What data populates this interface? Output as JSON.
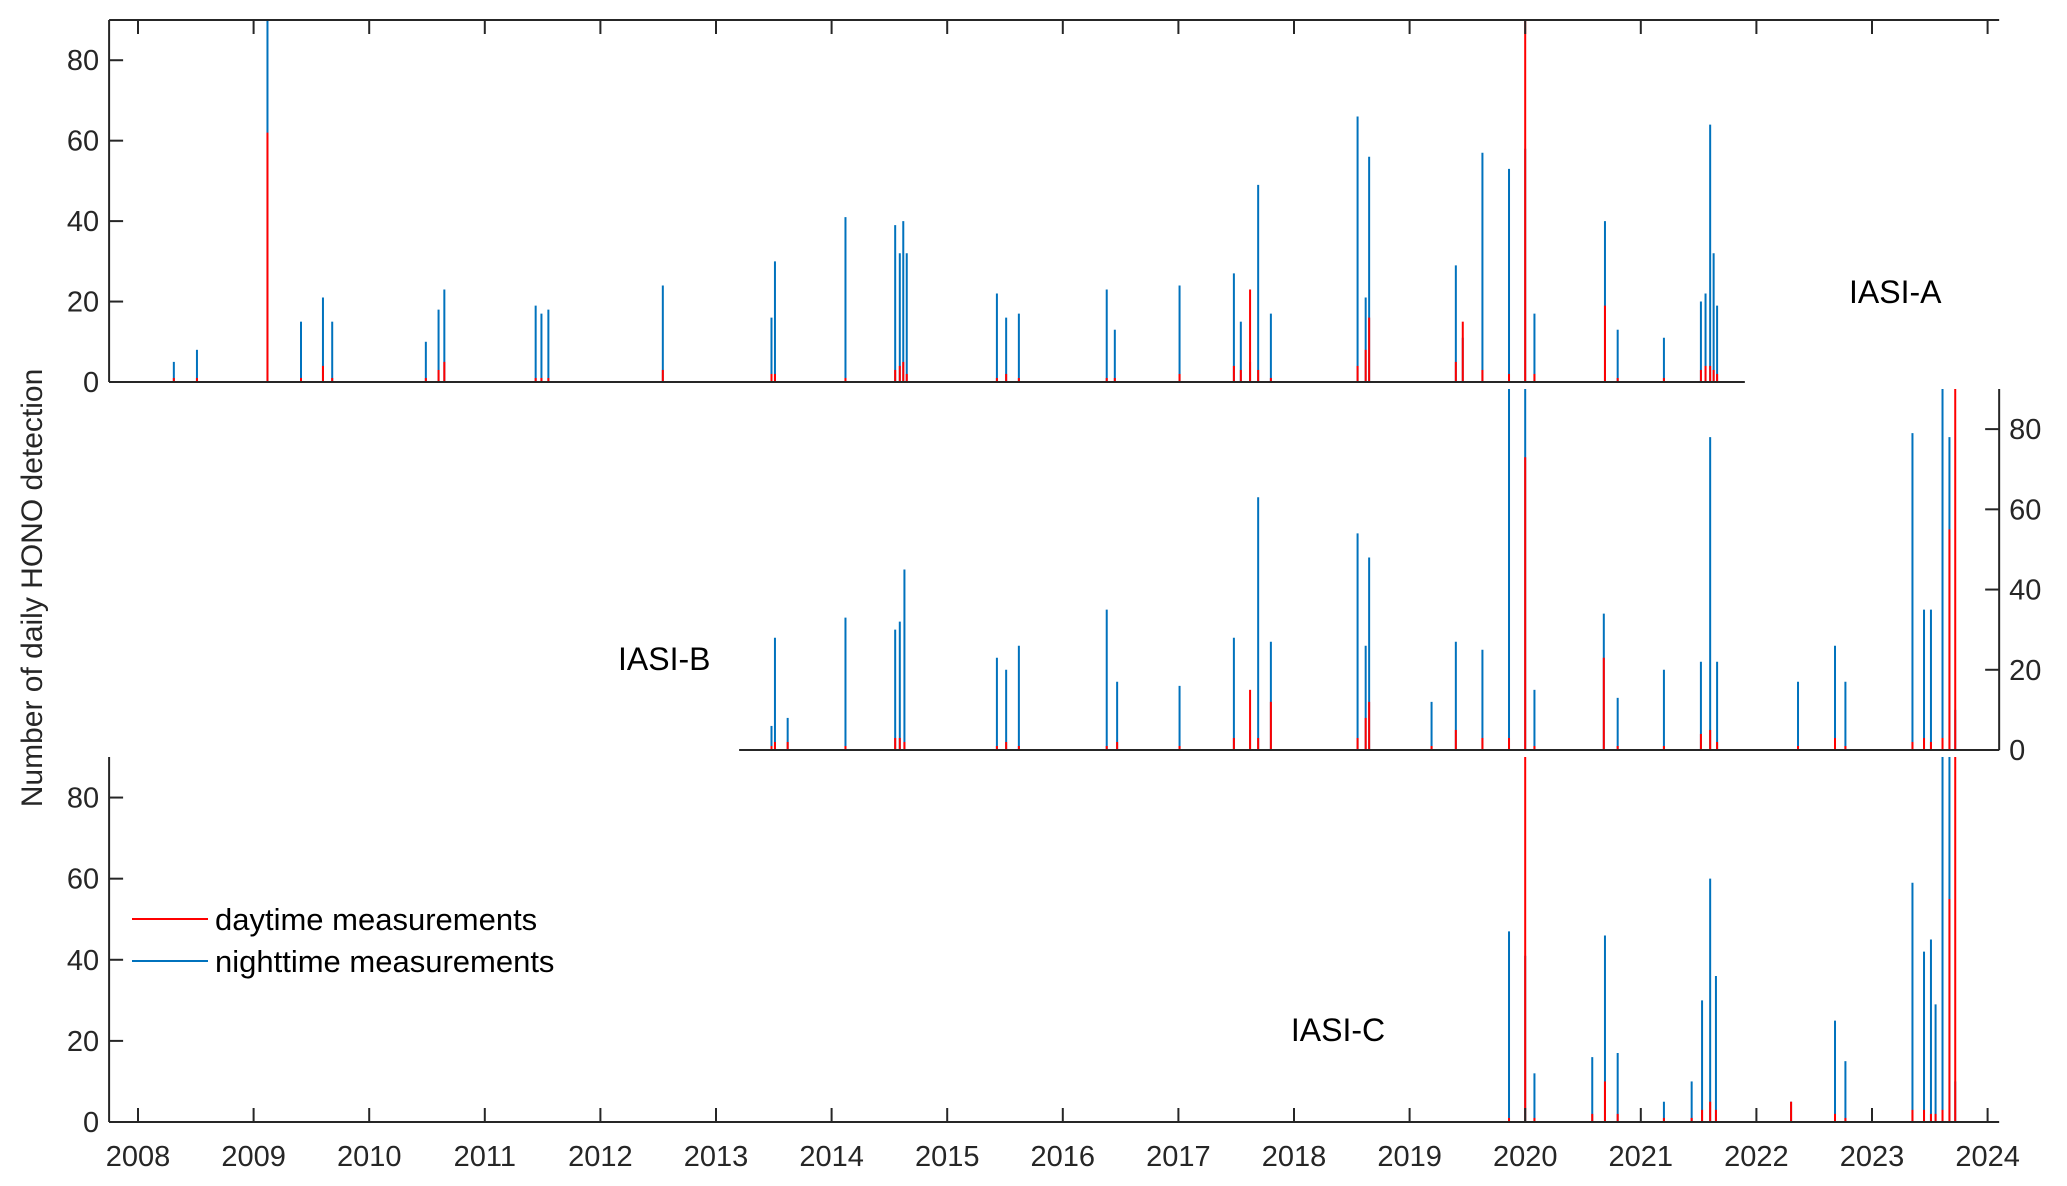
{
  "chart_data": {
    "type": "bar",
    "ylabel": "Number of daily HONO detection",
    "xlim": [
      2007.75,
      2024.1
    ],
    "ylim": [
      0,
      90
    ],
    "yticks": [
      "0",
      "20",
      "40",
      "60",
      "80"
    ],
    "xticks": [
      "2008",
      "2009",
      "2010",
      "2011",
      "2012",
      "2013",
      "2014",
      "2015",
      "2016",
      "2017",
      "2018",
      "2019",
      "2020",
      "2021",
      "2022",
      "2023",
      "2024"
    ],
    "legend": {
      "placement": "lower-left of bottom panel",
      "entries": [
        {
          "label": "daytime measurements",
          "color": "#ff0000"
        },
        {
          "label": "nighttime measurements",
          "color": "#0072bd"
        }
      ]
    },
    "series_note": "each entry: [year, nighttime count, daytime count]",
    "panels": [
      {
        "name": "IASI-A",
        "x_range": [
          2007.75,
          2021.9
        ],
        "y_axis_side": "left",
        "points": [
          [
            2008.31,
            5,
            1
          ],
          [
            2008.51,
            8,
            1
          ],
          [
            2009.12,
            95,
            62
          ],
          [
            2009.41,
            15,
            1
          ],
          [
            2009.6,
            21,
            4
          ],
          [
            2009.68,
            15,
            1
          ],
          [
            2010.49,
            10,
            1
          ],
          [
            2010.6,
            18,
            3
          ],
          [
            2010.65,
            23,
            5
          ],
          [
            2011.44,
            19,
            1
          ],
          [
            2011.49,
            17,
            1
          ],
          [
            2011.55,
            18,
            1
          ],
          [
            2012.54,
            24,
            3
          ],
          [
            2013.48,
            16,
            2
          ],
          [
            2013.51,
            30,
            2
          ],
          [
            2014.12,
            41,
            1
          ],
          [
            2014.55,
            39,
            3
          ],
          [
            2014.59,
            32,
            4
          ],
          [
            2014.62,
            40,
            5
          ],
          [
            2014.65,
            32,
            2
          ],
          [
            2015.43,
            22,
            1
          ],
          [
            2015.51,
            16,
            2
          ],
          [
            2015.62,
            17,
            1
          ],
          [
            2016.38,
            23,
            1
          ],
          [
            2016.45,
            13,
            1
          ],
          [
            2017.01,
            24,
            2
          ],
          [
            2017.48,
            27,
            4
          ],
          [
            2017.54,
            15,
            3
          ],
          [
            2017.62,
            5,
            23
          ],
          [
            2017.69,
            49,
            3
          ],
          [
            2017.8,
            17,
            1
          ],
          [
            2018.55,
            66,
            4
          ],
          [
            2018.62,
            21,
            8
          ],
          [
            2018.65,
            56,
            16
          ],
          [
            2019.4,
            29,
            5
          ],
          [
            2019.46,
            11,
            15
          ],
          [
            2019.63,
            57,
            3
          ],
          [
            2019.86,
            53,
            2
          ],
          [
            2020.0,
            58,
            95
          ],
          [
            2020.08,
            17,
            2
          ],
          [
            2020.69,
            40,
            19
          ],
          [
            2020.8,
            13,
            1
          ],
          [
            2021.2,
            11,
            1
          ],
          [
            2021.52,
            20,
            3
          ],
          [
            2021.56,
            22,
            4
          ],
          [
            2021.6,
            64,
            4
          ],
          [
            2021.63,
            32,
            3
          ],
          [
            2021.66,
            19,
            2
          ]
        ]
      },
      {
        "name": "IASI-B",
        "x_range": [
          2013.2,
          2024.1
        ],
        "y_axis_side": "right",
        "points": [
          [
            2013.48,
            6,
            1
          ],
          [
            2013.51,
            28,
            2
          ],
          [
            2013.62,
            8,
            2
          ],
          [
            2014.12,
            33,
            1
          ],
          [
            2014.55,
            30,
            3
          ],
          [
            2014.59,
            32,
            3
          ],
          [
            2014.63,
            45,
            2
          ],
          [
            2015.43,
            23,
            1
          ],
          [
            2015.51,
            20,
            2
          ],
          [
            2015.62,
            26,
            1
          ],
          [
            2016.38,
            35,
            1
          ],
          [
            2016.47,
            17,
            2
          ],
          [
            2017.01,
            16,
            1
          ],
          [
            2017.48,
            28,
            3
          ],
          [
            2017.62,
            5,
            15
          ],
          [
            2017.69,
            63,
            3
          ],
          [
            2017.8,
            27,
            12
          ],
          [
            2018.55,
            54,
            3
          ],
          [
            2018.62,
            26,
            8
          ],
          [
            2018.65,
            48,
            12
          ],
          [
            2019.19,
            12,
            1
          ],
          [
            2019.4,
            27,
            5
          ],
          [
            2019.63,
            25,
            3
          ],
          [
            2019.86,
            95,
            3
          ],
          [
            2020.0,
            95,
            73
          ],
          [
            2020.08,
            15,
            1
          ],
          [
            2020.68,
            34,
            23
          ],
          [
            2020.8,
            13,
            1
          ],
          [
            2021.2,
            20,
            1
          ],
          [
            2021.52,
            22,
            4
          ],
          [
            2021.6,
            78,
            5
          ],
          [
            2021.66,
            22,
            2
          ],
          [
            2022.36,
            17,
            1
          ],
          [
            2022.68,
            26,
            3
          ],
          [
            2022.77,
            17,
            1
          ],
          [
            2023.35,
            79,
            2
          ],
          [
            2023.45,
            35,
            3
          ],
          [
            2023.51,
            35,
            2
          ],
          [
            2023.61,
            95,
            3
          ],
          [
            2023.67,
            78,
            55
          ],
          [
            2023.72,
            10,
            95
          ]
        ]
      },
      {
        "name": "IASI-C",
        "x_range": [
          2007.75,
          2024.1
        ],
        "y_axis_side": "left",
        "points": [
          [
            2019.86,
            47,
            1
          ],
          [
            2020.0,
            41,
            95
          ],
          [
            2020.08,
            12,
            1
          ],
          [
            2020.58,
            16,
            2
          ],
          [
            2020.69,
            46,
            10
          ],
          [
            2020.8,
            17,
            2
          ],
          [
            2021.2,
            5,
            1
          ],
          [
            2021.44,
            10,
            1
          ],
          [
            2021.53,
            30,
            3
          ],
          [
            2021.6,
            60,
            5
          ],
          [
            2021.65,
            36,
            3
          ],
          [
            2022.3,
            5,
            5
          ],
          [
            2022.68,
            25,
            2
          ],
          [
            2022.77,
            15,
            1
          ],
          [
            2023.35,
            59,
            3
          ],
          [
            2023.45,
            42,
            3
          ],
          [
            2023.51,
            45,
            2
          ],
          [
            2023.55,
            29,
            2
          ],
          [
            2023.61,
            95,
            3
          ],
          [
            2023.67,
            95,
            55
          ],
          [
            2023.72,
            10,
            95
          ]
        ]
      }
    ]
  }
}
